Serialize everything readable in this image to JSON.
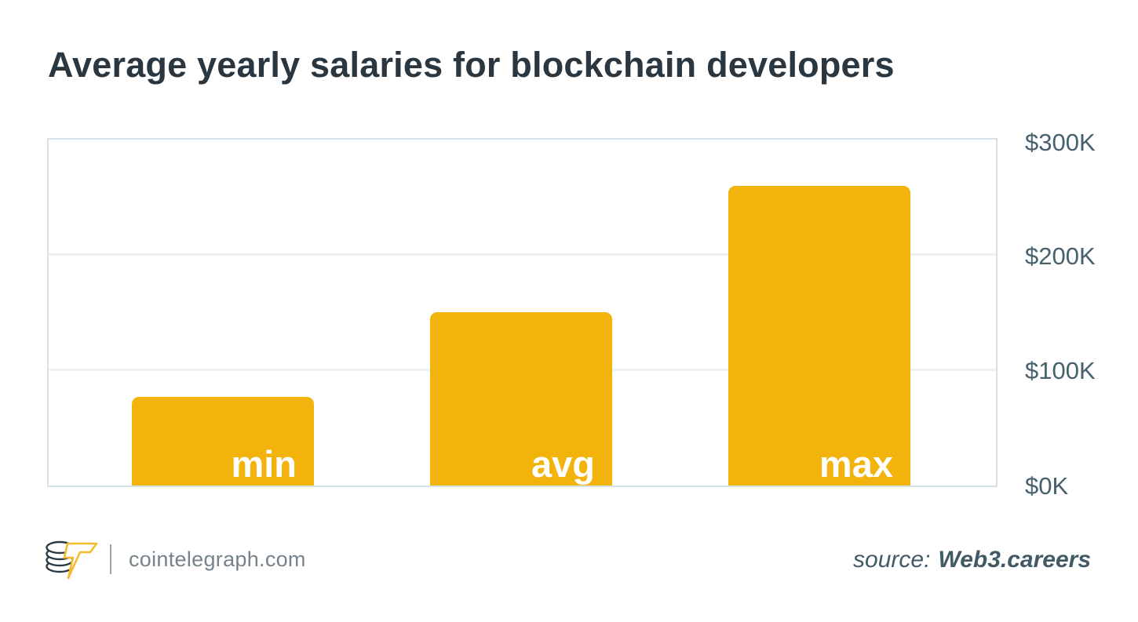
{
  "title": "Average yearly salaries for blockchain developers",
  "chart_data": {
    "type": "bar",
    "title": "Average yearly salaries for blockchain developers",
    "categories": [
      "min",
      "avg",
      "max"
    ],
    "values": [
      77,
      150,
      260
    ],
    "value_unit": "thousand USD per year",
    "xlabel": "",
    "ylabel": "",
    "ylim": [
      0,
      300
    ],
    "y_ticks_top_to_bottom": [
      "$300K",
      "$200K",
      "$100K",
      "$0K"
    ],
    "tick_side": "right",
    "grid": true,
    "legend": "none",
    "bar_label_position": "inside-bottom-right"
  },
  "colors": {
    "accent_bar": "#F2B30D",
    "title": "#2B3740",
    "tick_label": "#47616E",
    "plot_border": "#D7E1E8",
    "gridline": "#EDF2F6",
    "brand_text": "#76838B",
    "source_text": "#415A66",
    "logo_dark": "#2E3A42",
    "logo_yellow": "#F3BA2F"
  },
  "footer": {
    "brand": "cointelegraph.com",
    "source_prefix": "source:",
    "source_name": "Web3.careers",
    "logo": "cointelegraph-coin-stack-lightning-icon"
  }
}
